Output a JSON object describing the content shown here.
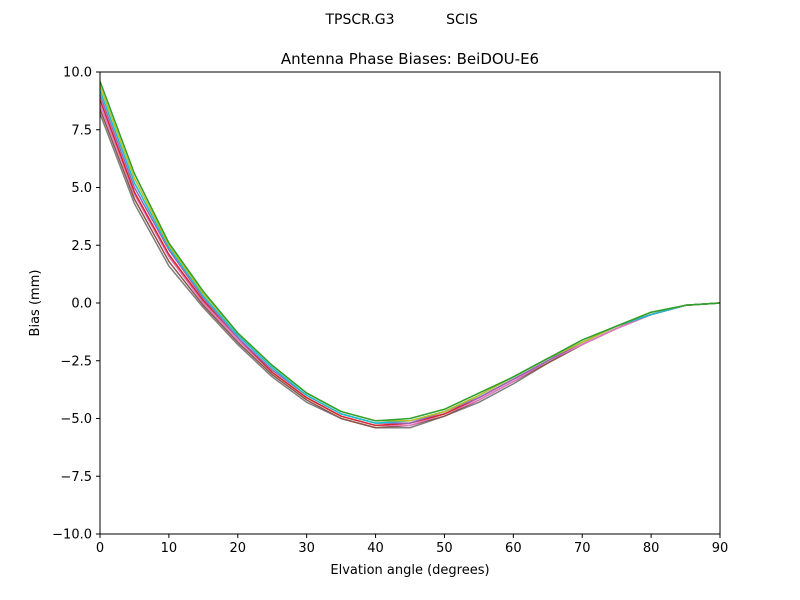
{
  "chart_data": {
    "type": "line",
    "suptitle_left": "TPSCR.G3",
    "suptitle_right": "SCIS",
    "title": "Antenna Phase Biases: BeiDOU-E6",
    "xlabel": "Elvation angle (degrees)",
    "ylabel": "Bias (mm)",
    "xlim": [
      0,
      90
    ],
    "ylim": [
      -10,
      10
    ],
    "xticks": [
      0,
      10,
      20,
      30,
      40,
      50,
      60,
      70,
      80,
      90
    ],
    "yticks": [
      10.0,
      7.5,
      5.0,
      2.5,
      0.0,
      -2.5,
      -5.0,
      -7.5,
      -10.0
    ],
    "ytick_labels": [
      "10.0",
      "7.5",
      "5.0",
      "2.5",
      "0.0",
      "−2.5",
      "−5.0",
      "−7.5",
      "−10.0"
    ],
    "xtick_labels": [
      "0",
      "10",
      "20",
      "30",
      "40",
      "50",
      "60",
      "70",
      "80",
      "90"
    ],
    "grid": false,
    "x": [
      0,
      5,
      10,
      15,
      20,
      25,
      30,
      35,
      40,
      45,
      50,
      55,
      60,
      65,
      70,
      75,
      80,
      85,
      90
    ],
    "series": [
      {
        "color": "#7f7f7f",
        "values": [
          8.2,
          4.3,
          1.6,
          -0.2,
          -1.8,
          -3.2,
          -4.3,
          -5.0,
          -5.4,
          -5.4,
          -4.9,
          -4.3,
          -3.5,
          -2.6,
          -1.8,
          -1.1,
          -0.5,
          -0.1,
          0.0
        ]
      },
      {
        "color": "#8c564b",
        "values": [
          8.4,
          4.5,
          1.8,
          -0.1,
          -1.7,
          -3.1,
          -4.2,
          -5.0,
          -5.4,
          -5.3,
          -4.9,
          -4.2,
          -3.4,
          -2.6,
          -1.8,
          -1.1,
          -0.5,
          -0.1,
          0.0
        ]
      },
      {
        "color": "#e377c2",
        "values": [
          8.6,
          4.7,
          2.0,
          0.0,
          -1.6,
          -3.0,
          -4.1,
          -4.9,
          -5.3,
          -5.3,
          -4.8,
          -4.2,
          -3.4,
          -2.5,
          -1.8,
          -1.1,
          -0.5,
          -0.1,
          0.0
        ]
      },
      {
        "color": "#d62728",
        "values": [
          8.8,
          4.8,
          2.1,
          0.1,
          -1.5,
          -3.0,
          -4.1,
          -4.9,
          -5.3,
          -5.2,
          -4.8,
          -4.1,
          -3.3,
          -2.5,
          -1.7,
          -1.0,
          -0.5,
          -0.1,
          0.0
        ]
      },
      {
        "color": "#9467bd",
        "values": [
          9.0,
          5.0,
          2.3,
          0.2,
          -1.5,
          -2.9,
          -4.0,
          -4.8,
          -5.2,
          -5.2,
          -4.7,
          -4.1,
          -3.3,
          -2.5,
          -1.7,
          -1.0,
          -0.5,
          -0.1,
          0.0
        ]
      },
      {
        "color": "#17becf",
        "values": [
          9.2,
          5.2,
          2.4,
          0.3,
          -1.4,
          -2.8,
          -4.0,
          -4.8,
          -5.2,
          -5.1,
          -4.7,
          -4.0,
          -3.2,
          -2.4,
          -1.7,
          -1.0,
          -0.5,
          -0.1,
          0.0
        ]
      },
      {
        "color": "#bcbd22",
        "values": [
          9.4,
          5.4,
          2.5,
          0.4,
          -1.3,
          -2.7,
          -3.9,
          -4.7,
          -5.1,
          -5.1,
          -4.7,
          -4.0,
          -3.2,
          -2.4,
          -1.7,
          -1.0,
          -0.4,
          -0.1,
          0.0
        ]
      },
      {
        "color": "#2ca02c",
        "values": [
          9.6,
          5.6,
          2.6,
          0.5,
          -1.3,
          -2.7,
          -3.9,
          -4.7,
          -5.1,
          -5.0,
          -4.6,
          -3.9,
          -3.2,
          -2.4,
          -1.6,
          -1.0,
          -0.4,
          -0.1,
          0.0
        ]
      }
    ]
  }
}
